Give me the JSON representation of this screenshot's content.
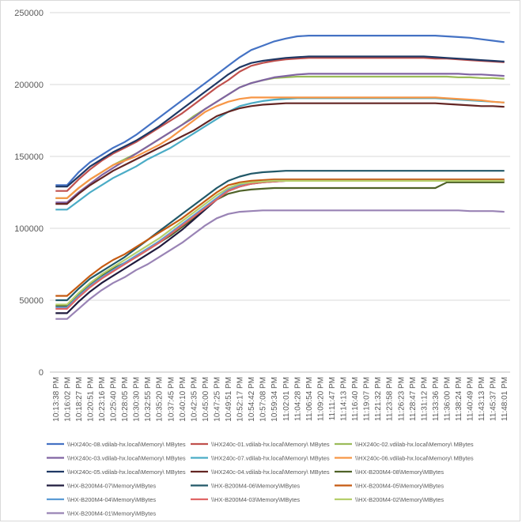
{
  "chart_data": {
    "type": "line",
    "title": "",
    "xlabel": "",
    "ylabel": "",
    "ylim": [
      0,
      250000
    ],
    "yticks": [
      0,
      50000,
      100000,
      150000,
      200000,
      250000
    ],
    "ytick_labels": [
      "0",
      "50000",
      "100000",
      "150000",
      "200000",
      "250000"
    ],
    "grid": true,
    "legend_position": "bottom",
    "x": [
      "10:13:38 PM",
      "10:16:02 PM",
      "10:18:27 PM",
      "10:20:51 PM",
      "10:23:16 PM",
      "10:25:40 PM",
      "10:28:05 PM",
      "10:30:30 PM",
      "10:32:55 PM",
      "10:35:20 PM",
      "10:37:45 PM",
      "10:40:10 PM",
      "10:42:35 PM",
      "10:45:00 PM",
      "10:47:25 PM",
      "10:49:51 PM",
      "10:52:17 PM",
      "10:54:42 PM",
      "10:57:08 PM",
      "10:59:34 PM",
      "11:02:01 PM",
      "11:04:28 PM",
      "11:06:54 PM",
      "11:09:20 PM",
      "11:11:47 PM",
      "11:14:13 PM",
      "11:16:40 PM",
      "11:19:07 PM",
      "11:21:32 PM",
      "11:23:58 PM",
      "11:26:23 PM",
      "11:28:47 PM",
      "11:31:12 PM",
      "11:33:36 PM",
      "11:36:00 PM",
      "11:38:24 PM",
      "11:40:49 PM",
      "11:43:13 PM",
      "11:45:37 PM",
      "11:48:01 PM"
    ],
    "series": [
      {
        "name": "\\\\HX240c-08.vdilab-hx.local\\Memory\\ MBytes",
        "color": "#4472c4",
        "values": [
          130000,
          130000,
          139000,
          146000,
          151000,
          156000,
          160000,
          165000,
          171000,
          177000,
          183000,
          189000,
          195000,
          201000,
          207000,
          213000,
          219000,
          224000,
          227000,
          230000,
          232000,
          233500,
          234000,
          234000,
          234000,
          234000,
          234000,
          234000,
          234000,
          234000,
          234000,
          234000,
          234000,
          234000,
          233500,
          233000,
          232500,
          231500,
          230500,
          229500
        ]
      },
      {
        "name": "\\\\HX240c-01.vdilab-hx.local\\Memory\\ MBytes",
        "color": "#c0504d",
        "values": [
          126000,
          126000,
          134000,
          141000,
          147000,
          152000,
          156000,
          160000,
          165000,
          170000,
          175000,
          180000,
          186000,
          192000,
          198000,
          203000,
          209000,
          213000,
          215000,
          216500,
          217500,
          218000,
          218500,
          218500,
          218500,
          218500,
          218500,
          218500,
          218500,
          218500,
          218500,
          218500,
          218500,
          218000,
          218000,
          217500,
          217000,
          216500,
          216000,
          215500
        ]
      },
      {
        "name": "\\\\HX240c-02.vdilab-hx.local\\Memory\\ MBytes",
        "color": "#9bbb59",
        "values": [
          121000,
          121000,
          128000,
          134000,
          139000,
          144000,
          148000,
          152000,
          157000,
          162000,
          167000,
          172000,
          178000,
          183000,
          188000,
          193000,
          198000,
          201000,
          203000,
          204500,
          205000,
          205500,
          205500,
          205500,
          205500,
          205500,
          205500,
          205500,
          205500,
          205500,
          205500,
          205500,
          205500,
          205500,
          205500,
          205000,
          205000,
          204500,
          204500,
          204000
        ]
      },
      {
        "name": "\\\\HX240c-03.vdilab-hx.local\\Memory\\ MBytes",
        "color": "#8064a2",
        "values": [
          118000,
          118000,
          125000,
          131000,
          137000,
          142000,
          147000,
          152000,
          157000,
          162000,
          167000,
          172000,
          177000,
          183000,
          188000,
          193000,
          198000,
          201000,
          203000,
          205000,
          206000,
          207000,
          207500,
          207500,
          207500,
          207500,
          207500,
          207500,
          207500,
          207500,
          207500,
          207500,
          207500,
          207500,
          207500,
          207500,
          207000,
          207000,
          206500,
          206000
        ]
      },
      {
        "name": "\\\\HX240c-07.vdilab-hx.local\\Memory\\ MBytes",
        "color": "#4bacc6",
        "values": [
          113000,
          113000,
          119000,
          125000,
          130000,
          135000,
          139000,
          143000,
          148000,
          152000,
          156000,
          161000,
          166000,
          171000,
          176000,
          181000,
          185000,
          187000,
          188500,
          189500,
          190000,
          190500,
          190500,
          190500,
          190500,
          190500,
          190500,
          190500,
          190500,
          190500,
          190500,
          190500,
          190500,
          190500,
          190000,
          189500,
          189000,
          188500,
          188000,
          187500
        ]
      },
      {
        "name": "\\\\HX240c-06.vdilab-hx.local\\Memory\\ MBytes",
        "color": "#f79646",
        "values": [
          121000,
          121000,
          128000,
          134000,
          139000,
          144000,
          147000,
          150000,
          154000,
          158000,
          163000,
          169000,
          175000,
          181000,
          185000,
          188000,
          190000,
          191000,
          191000,
          191000,
          191000,
          191000,
          191000,
          191000,
          191000,
          191000,
          191000,
          191000,
          191000,
          191000,
          191000,
          191000,
          191000,
          191000,
          190500,
          190000,
          189500,
          189000,
          188000,
          187500
        ]
      },
      {
        "name": "\\\\HX240c-05.vdilab-hx.local\\Memory\\ MBytes",
        "color": "#1f3864",
        "values": [
          129000,
          129000,
          136000,
          143000,
          148000,
          153000,
          157000,
          161000,
          166000,
          171000,
          177000,
          183000,
          189000,
          195000,
          201000,
          207000,
          212000,
          215000,
          216500,
          217500,
          218500,
          219000,
          219500,
          219500,
          219500,
          219500,
          219500,
          219500,
          219500,
          219500,
          219500,
          219500,
          219500,
          219000,
          218500,
          218000,
          217500,
          217000,
          216500,
          216000
        ]
      },
      {
        "name": "\\\\HX240c-04.vdilab-hx.local\\Memory\\ MBytes",
        "color": "#632523",
        "values": [
          117000,
          117000,
          124000,
          130000,
          135000,
          140000,
          144000,
          148000,
          152000,
          156000,
          160000,
          164000,
          168000,
          173000,
          178000,
          181000,
          183500,
          185000,
          186000,
          186500,
          187000,
          187000,
          187000,
          187000,
          187000,
          187000,
          187000,
          187000,
          187000,
          187000,
          187000,
          187000,
          187000,
          187000,
          186500,
          186000,
          185500,
          185000,
          185000,
          184500
        ]
      },
      {
        "name": "\\\\HX-B200M4-08\\Memory\\MBytes",
        "color": "#4f6228",
        "values": [
          46000,
          46000,
          54000,
          61000,
          67000,
          72000,
          76000,
          80000,
          85000,
          90000,
          95000,
          101000,
          107000,
          114000,
          120000,
          124000,
          126000,
          127000,
          127500,
          128000,
          128000,
          128000,
          128000,
          128000,
          128000,
          128000,
          128000,
          128000,
          128000,
          128000,
          128000,
          128000,
          128000,
          128000,
          132000,
          132000,
          132000,
          132000,
          132000,
          132000
        ]
      },
      {
        "name": "\\\\HX-B200M4-07\\Memory\\MBytes",
        "color": "#1f1a3d",
        "values": [
          41000,
          41000,
          49000,
          56000,
          62000,
          67000,
          72000,
          77000,
          82000,
          87000,
          93000,
          99000,
          106000,
          113000,
          120000,
          126000,
          129000,
          131000,
          132000,
          132500,
          133000,
          133000,
          133000,
          133000,
          133000,
          133000,
          133000,
          133000,
          133000,
          133000,
          133000,
          133000,
          133000,
          133000,
          133000,
          133000,
          133000,
          133000,
          133000,
          133000
        ]
      },
      {
        "name": "\\\\HX-B200M4-06\\Memory\\MBytes",
        "color": "#215868",
        "values": [
          50000,
          50000,
          58000,
          65000,
          70000,
          75000,
          80000,
          86000,
          92000,
          98000,
          104000,
          110000,
          116000,
          122000,
          128000,
          133000,
          136000,
          138000,
          139000,
          139500,
          140000,
          140000,
          140000,
          140000,
          140000,
          140000,
          140000,
          140000,
          140000,
          140000,
          140000,
          140000,
          140000,
          140000,
          140000,
          140000,
          140000,
          140000,
          140000,
          140000
        ]
      },
      {
        "name": "\\\\HX-B200M4-05\\Memory\\MBytes",
        "color": "#c55a11",
        "values": [
          53000,
          53000,
          60000,
          67000,
          73000,
          78000,
          82000,
          87000,
          92000,
          97000,
          102000,
          107000,
          113000,
          119000,
          125000,
          130000,
          132000,
          133000,
          133500,
          134000,
          134000,
          134000,
          134000,
          134000,
          134000,
          134000,
          134000,
          134000,
          134000,
          134000,
          134000,
          134000,
          134000,
          134000,
          134000,
          134000,
          134000,
          134000,
          134000,
          134000
        ]
      },
      {
        "name": "\\\\HX-B200M4-04\\Memory\\MBytes",
        "color": "#5b9bd5",
        "values": [
          45000,
          45000,
          53000,
          60000,
          66000,
          71000,
          76000,
          81000,
          86000,
          91000,
          97000,
          103000,
          109000,
          115000,
          121000,
          127000,
          130000,
          131500,
          132500,
          133000,
          133000,
          133000,
          133000,
          133000,
          133000,
          133000,
          133000,
          133000,
          133000,
          133000,
          133000,
          133000,
          133000,
          133000,
          133000,
          133000,
          133000,
          133000,
          133000,
          133000
        ]
      },
      {
        "name": "\\\\HX-B200M4-03\\Memory\\MBytes",
        "color": "#e06666",
        "values": [
          44000,
          44000,
          52000,
          59000,
          65000,
          70000,
          75000,
          80000,
          85000,
          90000,
          96000,
          102000,
          108000,
          114000,
          120000,
          126000,
          129000,
          131000,
          132000,
          132500,
          133000,
          133000,
          133000,
          133000,
          133000,
          133000,
          133000,
          133000,
          133000,
          133000,
          133000,
          133000,
          133000,
          133000,
          133000,
          133000,
          133000,
          133000,
          133000,
          133000
        ]
      },
      {
        "name": "\\\\HX-B200M4-02\\Memory\\MBytes",
        "color": "#b5cf6b",
        "values": [
          47000,
          47000,
          55000,
          62000,
          68000,
          73000,
          78000,
          83000,
          88000,
          93000,
          99000,
          105000,
          111000,
          117000,
          123000,
          128000,
          131000,
          132000,
          132500,
          133000,
          133000,
          133000,
          133000,
          133000,
          133000,
          133000,
          133000,
          133000,
          133000,
          133000,
          133000,
          133000,
          133000,
          133000,
          133000,
          133000,
          133000,
          133000,
          133000,
          133000
        ]
      },
      {
        "name": "\\\\HX-B200M4-01\\Memory\\MBytes",
        "color": "#9983b5",
        "values": [
          37000,
          37000,
          44000,
          51000,
          57000,
          62000,
          66000,
          71000,
          75000,
          80000,
          85000,
          90000,
          96000,
          102000,
          107000,
          110000,
          111500,
          112000,
          112500,
          112500,
          112500,
          112500,
          112500,
          112500,
          112500,
          112500,
          112500,
          112500,
          112500,
          112500,
          112500,
          112500,
          112500,
          112500,
          112500,
          112500,
          112000,
          112000,
          112000,
          111500
        ]
      }
    ]
  }
}
